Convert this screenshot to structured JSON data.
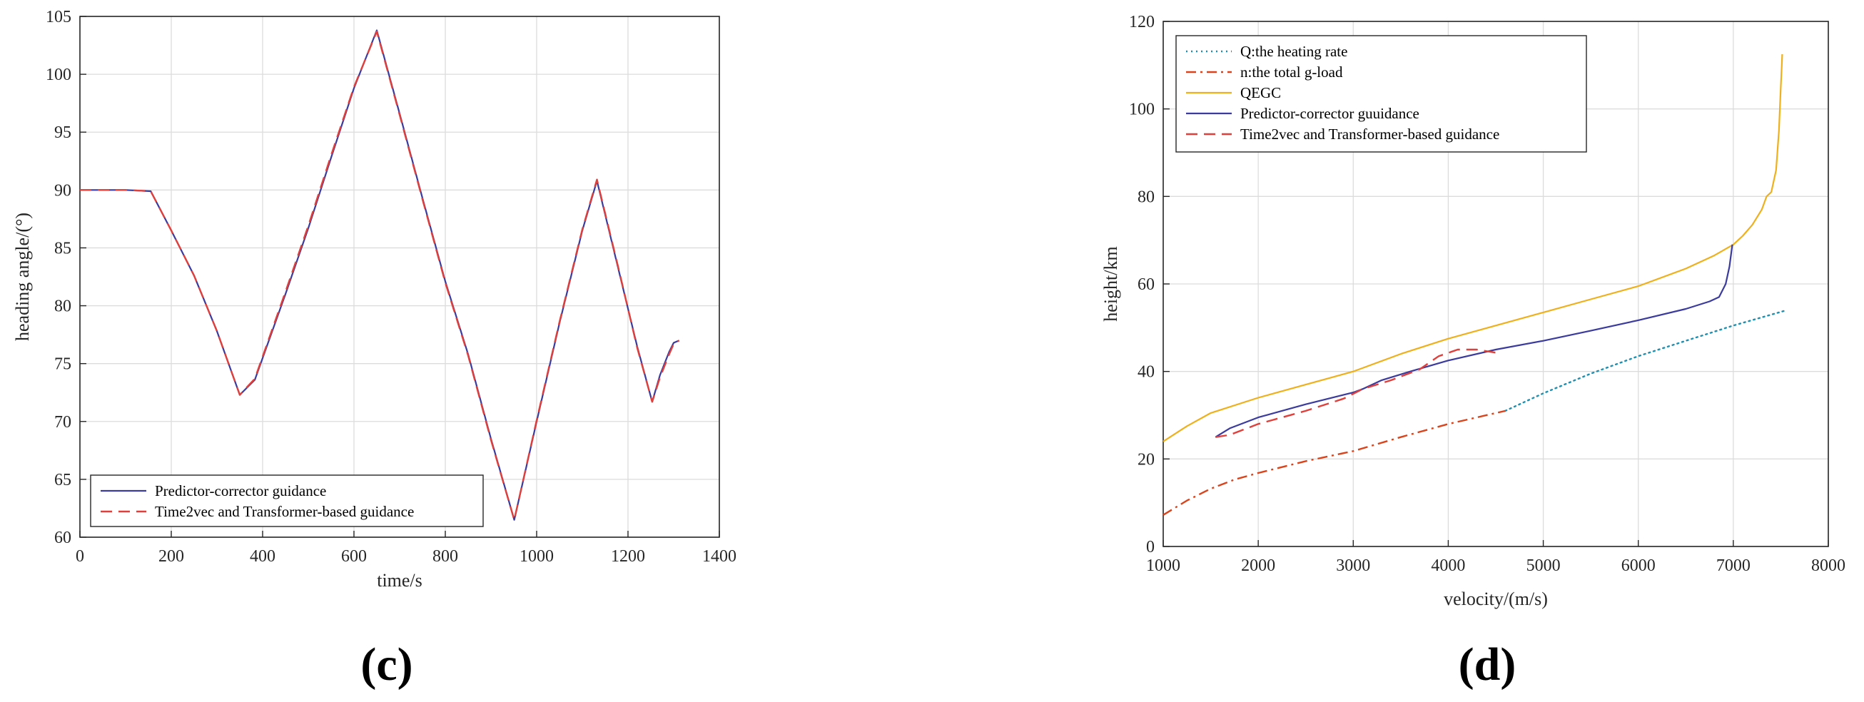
{
  "chart_data": [
    {
      "type": "line",
      "caption": "(c)",
      "xlabel": "time/s",
      "ylabel": "heading angle/(°)",
      "xlim": [
        0,
        1400
      ],
      "ylim": [
        60,
        105
      ],
      "xticks": [
        0,
        200,
        400,
        600,
        800,
        1000,
        1200,
        1400
      ],
      "yticks": [
        60,
        65,
        70,
        75,
        80,
        85,
        90,
        95,
        100,
        105
      ],
      "grid": true,
      "legend_position": "bottom-left",
      "series": [
        {
          "name": "Predictor-corrector guidance",
          "color": "#3b3b9e",
          "style": "solid",
          "x": [
            0,
            50,
            100,
            155,
            200,
            250,
            300,
            350,
            383,
            450,
            500,
            550,
            600,
            650,
            700,
            750,
            800,
            850,
            900,
            951,
            1000,
            1050,
            1100,
            1132,
            1180,
            1220,
            1253,
            1270,
            1290,
            1300,
            1312
          ],
          "y": [
            90,
            90,
            90,
            89.9,
            86.5,
            82.6,
            77.8,
            72.3,
            73.6,
            81.0,
            86.7,
            92.8,
            98.8,
            103.8,
            96.6,
            89.3,
            82.1,
            75.8,
            68.5,
            61.5,
            70.0,
            78.5,
            86.5,
            90.8,
            83.0,
            76.5,
            71.7,
            74.0,
            76.0,
            76.8,
            77.0
          ]
        },
        {
          "name": "Time2vec and Transformer-based guidance",
          "color": "#e0403c",
          "style": "dashed",
          "x": [
            0,
            50,
            100,
            155,
            200,
            250,
            300,
            350,
            383,
            450,
            500,
            550,
            600,
            650,
            700,
            750,
            800,
            850,
            900,
            951,
            1000,
            1050,
            1100,
            1132,
            1180,
            1220,
            1253,
            1270,
            1290,
            1300,
            1312
          ],
          "y": [
            90,
            90,
            90,
            89.9,
            86.5,
            82.6,
            77.8,
            72.3,
            73.7,
            81.2,
            86.9,
            93.0,
            98.9,
            103.7,
            96.5,
            89.2,
            82.0,
            75.7,
            68.4,
            61.5,
            70.1,
            78.6,
            86.6,
            90.9,
            83.1,
            76.4,
            71.7,
            73.8,
            75.8,
            76.7,
            77.0
          ]
        }
      ]
    },
    {
      "type": "line",
      "caption": "(d)",
      "xlabel": "velocity/(m/s)",
      "ylabel": "height/km",
      "xlim": [
        1000,
        8000
      ],
      "ylim": [
        0,
        120
      ],
      "xticks": [
        1000,
        2000,
        3000,
        4000,
        5000,
        6000,
        7000,
        8000
      ],
      "yticks": [
        0,
        20,
        40,
        60,
        80,
        100,
        120
      ],
      "grid": true,
      "legend_position": "top-left",
      "series": [
        {
          "name": "Q:the heating rate",
          "color": "#1f8fb0",
          "style": "dotted",
          "x": [
            4600,
            5000,
            5500,
            6000,
            6500,
            7000,
            7530
          ],
          "y": [
            31,
            35,
            39.5,
            43.5,
            47,
            50.5,
            53.8
          ]
        },
        {
          "name": "n:the total g-load",
          "color": "#d9441c",
          "style": "dashdot",
          "x": [
            1000,
            1250,
            1500,
            1750,
            2000,
            2500,
            3000,
            3500,
            4000,
            4600
          ],
          "y": [
            7.2,
            10.5,
            13.2,
            15.3,
            16.8,
            19.5,
            21.8,
            25,
            28,
            31
          ]
        },
        {
          "name": "QEGC",
          "color": "#eeb01d",
          "style": "solid",
          "x": [
            1000,
            1250,
            1500,
            2000,
            2500,
            3000,
            3500,
            4000,
            4500,
            5000,
            5500,
            6000,
            6500,
            6800,
            7000,
            7100,
            7200,
            7300,
            7350,
            7400,
            7450,
            7480,
            7500,
            7510,
            7515
          ],
          "y": [
            24,
            27.5,
            30.5,
            34,
            37,
            40,
            44,
            47.5,
            50.5,
            53.5,
            56.5,
            59.5,
            63.5,
            66.5,
            69,
            71,
            73.5,
            77,
            80,
            81,
            86,
            95,
            105,
            110,
            112.5
          ]
        },
        {
          "name": "Predictor-corrector guuidance",
          "color": "#3b3b9e",
          "style": "solid",
          "x": [
            1550,
            1700,
            2000,
            2500,
            3000,
            3100,
            3300,
            3600,
            4000,
            4500,
            5000,
            5500,
            6000,
            6500,
            6750,
            6850,
            6920,
            6960,
            6990
          ],
          "y": [
            25,
            27,
            29.5,
            32.5,
            35.2,
            36,
            38,
            40,
            42.5,
            45,
            47,
            49.3,
            51.7,
            54.3,
            56,
            57,
            60,
            64,
            69
          ]
        },
        {
          "name": "Time2vec and Transformer-based guidance",
          "color": "#e0403c",
          "style": "dashed",
          "x": [
            1550,
            1700,
            2000,
            2500,
            2900,
            3100,
            3400,
            3700,
            3900,
            4100,
            4300,
            4500
          ],
          "y": [
            25,
            25.5,
            28,
            31,
            33.8,
            36,
            38,
            40.5,
            43.5,
            45,
            45,
            44.3
          ]
        }
      ]
    }
  ]
}
